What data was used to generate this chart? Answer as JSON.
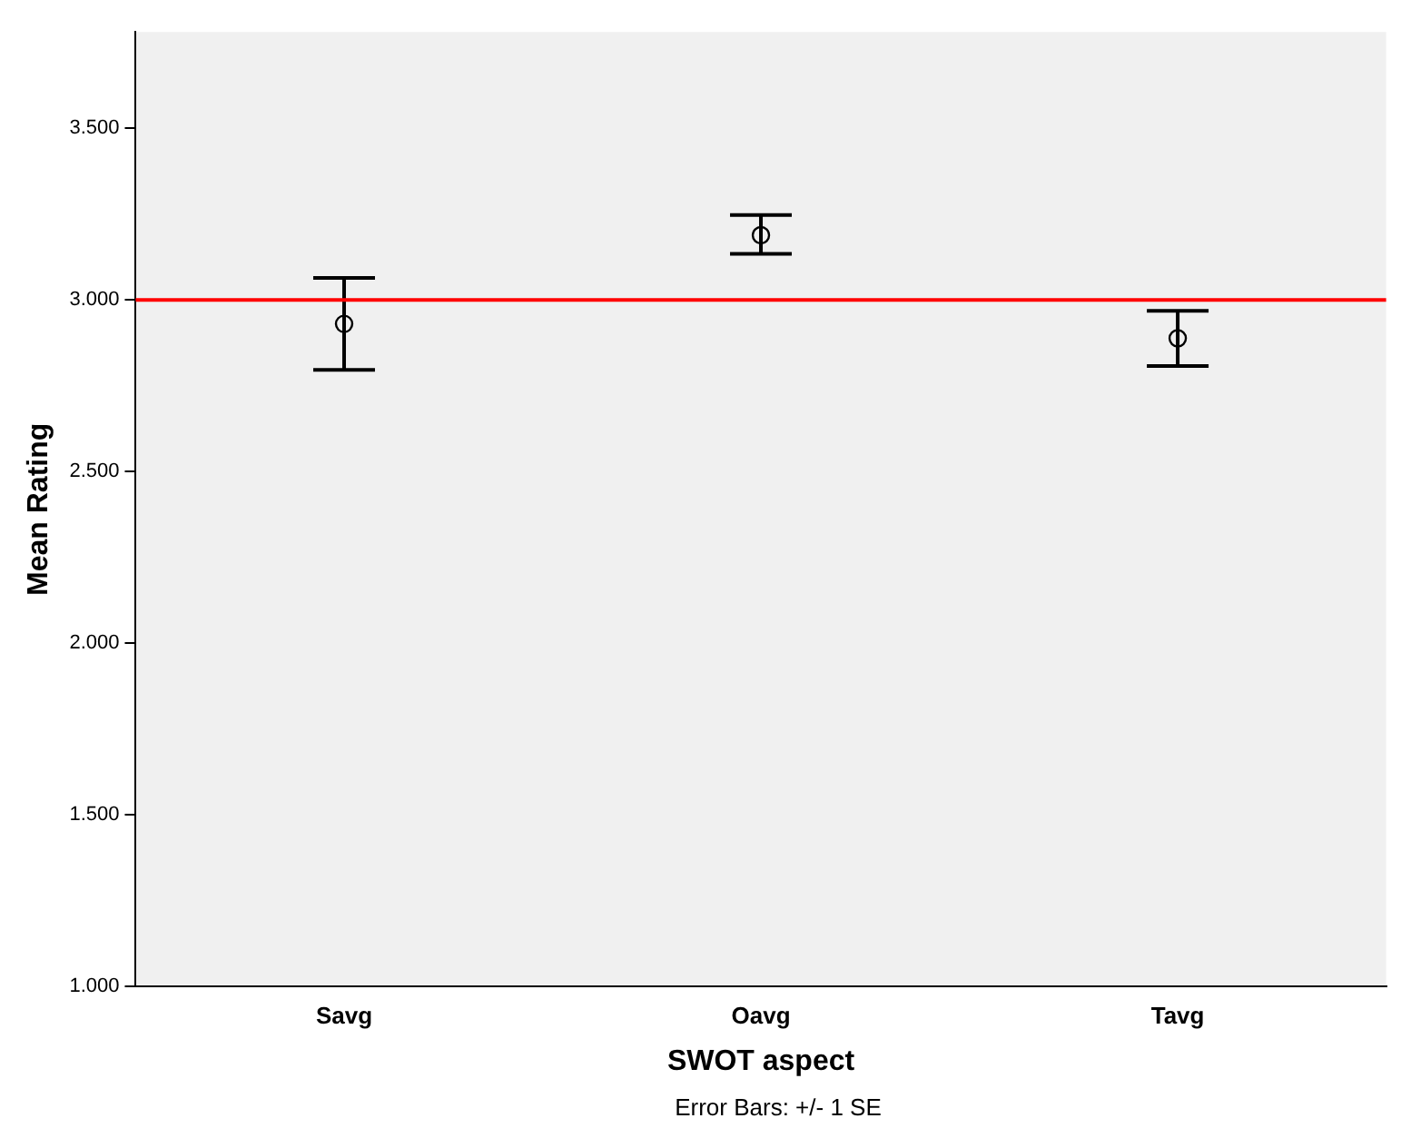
{
  "chart_data": {
    "type": "scatter",
    "xlabel": "SWOT aspect",
    "ylabel": "Mean Rating",
    "categories": [
      "Savg",
      "Oavg",
      "Tavg"
    ],
    "values": [
      2.93,
      3.188,
      2.888
    ],
    "errors": [
      [
        2.796,
        3.064
      ],
      [
        3.134,
        3.247
      ],
      [
        2.807,
        2.968
      ]
    ],
    "color": "#000000",
    "marker": "circle",
    "ylim": [
      1,
      3.78
    ],
    "yticks": [
      {
        "value": 1,
        "label": "1.000"
      },
      {
        "value": 1.5,
        "label": "1.500"
      },
      {
        "value": 2,
        "label": "2.000"
      },
      {
        "value": 2.5,
        "label": "2.500"
      },
      {
        "value": 3,
        "label": "3.000"
      },
      {
        "value": 3.5,
        "label": "3.500"
      }
    ],
    "ref_lines": [
      {
        "axis": "y",
        "value": 3,
        "color": "#ff0000"
      }
    ],
    "annotations": [
      "Error Bars: +/- 1 SE"
    ],
    "grid": false,
    "legend": false
  }
}
